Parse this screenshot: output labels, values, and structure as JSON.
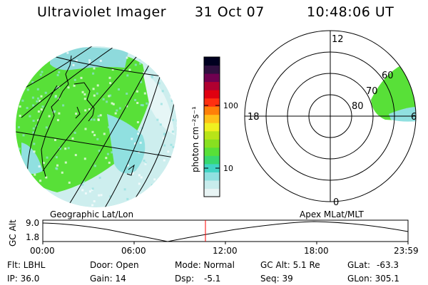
{
  "header": {
    "instrument": "Ultraviolet Imager",
    "date": "31 Oct 07",
    "time": "10:48:06 UT"
  },
  "colorbar": {
    "unit_label": "photon cm⁻²s⁻¹",
    "ticks": [
      "100",
      "10"
    ],
    "colors": [
      "#e8f4f4",
      "#c8ecec",
      "#90e0e0",
      "#40d4c4",
      "#38d870",
      "#58e038",
      "#88e020",
      "#b8e418",
      "#f0f020",
      "#ffc018",
      "#ff8008",
      "#ff3010",
      "#e00010",
      "#b00030",
      "#700050",
      "#301040",
      "#000020"
    ]
  },
  "geo_map": {
    "caption": "Geographic Lat/Lon"
  },
  "polar_plot": {
    "caption": "Apex  MLat/MLT",
    "mlt_labels": {
      "top": "12",
      "left": "18",
      "right": "6",
      "bottom": "0"
    },
    "mlat_labels": [
      "60",
      "70",
      "80"
    ]
  },
  "timeline": {
    "y_label": "GC Alt",
    "y_ticks": [
      "9.0",
      "1.8"
    ],
    "x_ticks": [
      "00:00",
      "06:00",
      "12:00",
      "18:00",
      "23:59"
    ],
    "current_marker_color": "#ff0000"
  },
  "status": {
    "flt": "Flt: LBHL",
    "ip": "IP: 36.0",
    "door": "Door: Open",
    "gain": "Gain: 14",
    "mode": "Mode: Normal",
    "dsp": "Dsp:",
    "dsp_value": "-5.1",
    "gc_alt": "GC Alt: 5.1 Re",
    "seq": "Seq: 39",
    "glat": "GLat:",
    "glat_value": "-63.3",
    "glon": "GLon: 305.1"
  }
}
